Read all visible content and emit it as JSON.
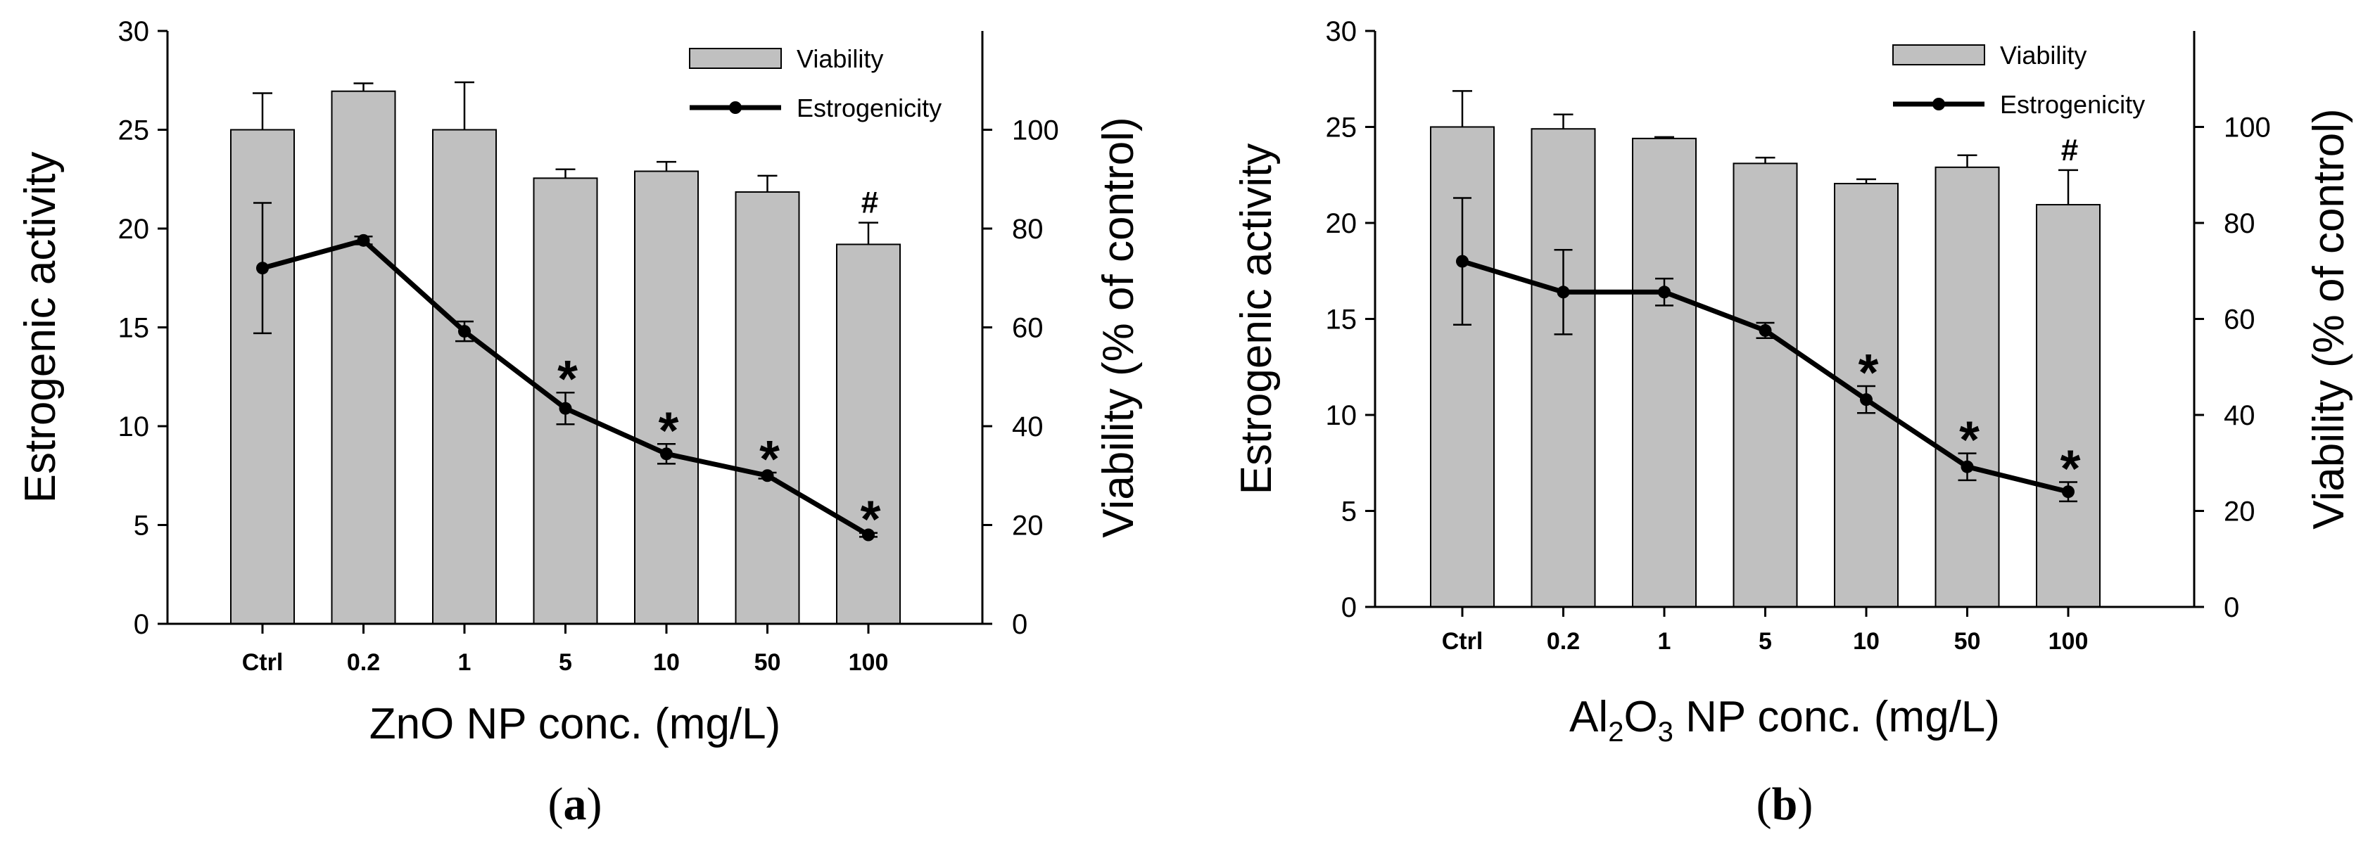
{
  "chart_data": [
    {
      "type": "bar",
      "panel_label": "a",
      "categories": [
        "Ctrl",
        "0.2",
        "1",
        "5",
        "10",
        "50",
        "100"
      ],
      "xlabel": "ZnO NP conc. (mg/L)",
      "xlabel_parts": [
        {
          "text": "ZnO NP conc. (mg/L)",
          "sub": false
        }
      ],
      "ylabel_left": "Estrogenic activity",
      "ylabel_right": "Viability (% of control)",
      "ylim_left": [
        0,
        30
      ],
      "yticks_left": [
        "0",
        "5",
        "10",
        "15",
        "20",
        "25",
        "30"
      ],
      "ylim_right": [
        0,
        120
      ],
      "yticks_right": [
        "0",
        "20",
        "40",
        "60",
        "80",
        "100"
      ],
      "legend_position": "top-right",
      "series": [
        {
          "name": "Viability",
          "kind": "bar",
          "axis": "right",
          "values": [
            100,
            107.8,
            100,
            90.2,
            91.6,
            87.4,
            76.8
          ],
          "errors": [
            7.4,
            1.6,
            9.6,
            1.8,
            1.9,
            3.3,
            4.4
          ],
          "color": "#c0c0c0"
        },
        {
          "name": "Estrogenicity",
          "kind": "line",
          "axis": "left",
          "values": [
            18.0,
            19.4,
            14.8,
            10.9,
            8.6,
            7.5,
            4.5
          ],
          "errors": [
            3.3,
            0.2,
            0.5,
            0.8,
            0.5,
            0.15,
            0.1
          ],
          "color": "#000000"
        }
      ],
      "annotations": [
        {
          "category": "5",
          "text": "*"
        },
        {
          "category": "10",
          "text": "*"
        },
        {
          "category": "50",
          "text": "*"
        },
        {
          "category": "100",
          "text": "*"
        },
        {
          "category": "100",
          "text": "#",
          "on": "bar"
        }
      ]
    },
    {
      "type": "bar",
      "panel_label": "b",
      "categories": [
        "Ctrl",
        "0.2",
        "1",
        "5",
        "10",
        "50",
        "100"
      ],
      "xlabel": "Al2O3 NP conc. (mg/L)",
      "xlabel_parts": [
        {
          "text": "Al",
          "sub": false
        },
        {
          "text": "2",
          "sub": true
        },
        {
          "text": "O",
          "sub": false
        },
        {
          "text": "3",
          "sub": true
        },
        {
          "text": " NP conc. (mg/L)",
          "sub": false
        }
      ],
      "ylabel_left": "Estrogenic activity",
      "ylabel_right": "Viability (% of control)",
      "ylim_left": [
        0,
        30
      ],
      "yticks_left": [
        "0",
        "5",
        "10",
        "15",
        "20",
        "25",
        "30"
      ],
      "ylim_right": [
        0,
        120
      ],
      "yticks_right": [
        "0",
        "20",
        "40",
        "60",
        "80",
        "100"
      ],
      "legend_position": "top-right",
      "series": [
        {
          "name": "Viability",
          "kind": "bar",
          "axis": "right",
          "values": [
            100,
            99.6,
            97.6,
            92.4,
            88.2,
            91.6,
            83.8
          ],
          "errors": [
            7.5,
            3.0,
            0.3,
            1.2,
            0.9,
            2.5,
            7.2
          ],
          "color": "#c0c0c0"
        },
        {
          "name": "Estrogenicity",
          "kind": "line",
          "axis": "left",
          "values": [
            18.0,
            16.4,
            16.4,
            14.4,
            10.8,
            7.3,
            6.0
          ],
          "errors": [
            3.3,
            2.2,
            0.7,
            0.4,
            0.7,
            0.7,
            0.5
          ],
          "color": "#000000"
        }
      ],
      "annotations": [
        {
          "category": "10",
          "text": "*"
        },
        {
          "category": "50",
          "text": "*"
        },
        {
          "category": "100",
          "text": "*"
        },
        {
          "category": "100",
          "text": "#",
          "on": "bar"
        }
      ]
    }
  ]
}
